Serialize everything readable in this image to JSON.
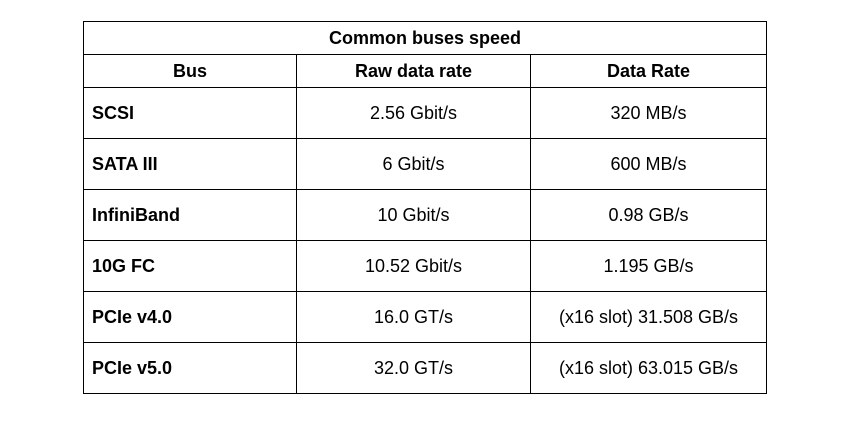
{
  "table": {
    "title": "Common buses speed",
    "headers": [
      "Bus",
      "Raw data rate",
      "Data Rate"
    ],
    "rows": [
      {
        "bus": "SCSI",
        "raw_rate": "2.56 Gbit/s",
        "data_rate": "320 MB/s"
      },
      {
        "bus": "SATA III",
        "raw_rate": "6 Gbit/s",
        "data_rate": "600 MB/s"
      },
      {
        "bus": "InfiniBand",
        "raw_rate": "10 Gbit/s",
        "data_rate": "0.98 GB/s"
      },
      {
        "bus": "10G FC",
        "raw_rate": "10.52 Gbit/s",
        "data_rate": "1.195 GB/s"
      },
      {
        "bus": "PCIe v4.0",
        "raw_rate": "16.0 GT/s",
        "data_rate": "(x16 slot) 31.508 GB/s"
      },
      {
        "bus": "PCIe v5.0",
        "raw_rate": "32.0 GT/s",
        "data_rate": "(x16 slot) 63.015 GB/s"
      }
    ]
  }
}
